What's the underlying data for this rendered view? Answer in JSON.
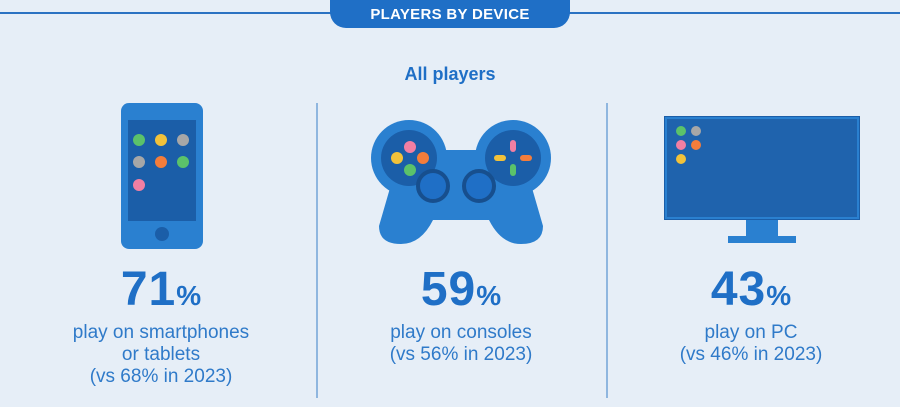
{
  "header": {
    "title": "PLAYERS BY DEVICE",
    "subtitle": "All players"
  },
  "colors": {
    "primary": "#1f6fc6",
    "text": "#2f7ac9",
    "background": "#e6eef7",
    "divider": "#8fb6df"
  },
  "devices": [
    {
      "icon": "smartphone-icon",
      "value": "71",
      "unit": "%",
      "lines": [
        "play on smartphones",
        "or tablets",
        "(vs 68% in 2023)"
      ]
    },
    {
      "icon": "gamepad-icon",
      "value": "59",
      "unit": "%",
      "lines": [
        "play on consoles",
        "(vs 56% in 2023)"
      ]
    },
    {
      "icon": "monitor-icon",
      "value": "43",
      "unit": "%",
      "lines": [
        "play on PC",
        "(vs 46% in 2023)"
      ]
    }
  ],
  "chart_data": {
    "type": "table",
    "title": "PLAYERS BY DEVICE",
    "subtitle": "All players",
    "categories": [
      "smartphones or tablets",
      "consoles",
      "PC"
    ],
    "values": [
      71,
      59,
      43
    ],
    "previous_year": 2023,
    "previous_values": [
      68,
      56,
      46
    ],
    "unit": "%"
  }
}
